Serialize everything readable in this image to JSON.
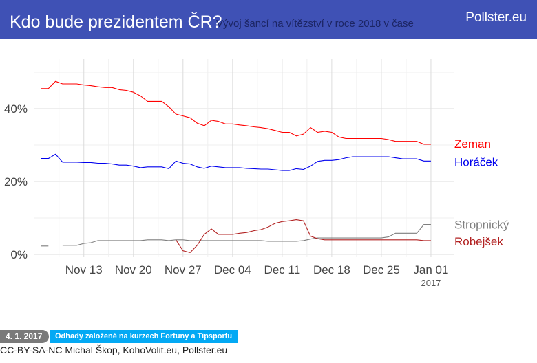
{
  "header": {
    "title": "Kdo bude prezidentem ČR?",
    "subtitle": "Vývoj šancí na vítězství v roce 2018 v čase",
    "brand": "Pollster.eu"
  },
  "footer": {
    "date_badge": "4. 1. 2017",
    "note_badge": "Odhady založené na kurzech Fortuny a Tipsportu",
    "credits": "CC-BY-SA-NC Michal Škop, KohoVolit.eu, Pollster.eu"
  },
  "chart_data": {
    "type": "line",
    "x_tick_labels": [
      "Nov 13",
      "Nov 20",
      "Nov 27",
      "Dec 04",
      "Dec 11",
      "Dec 18",
      "Dec 25",
      "Jan 01"
    ],
    "x_tick_year": "2017",
    "y_tick_labels": [
      "0%",
      "20%",
      "40%"
    ],
    "ylim": [
      0,
      50
    ],
    "grid": true,
    "x_range_days": [
      0,
      56
    ],
    "series": [
      {
        "name": "Zeman",
        "color": "#ff0000",
        "points": [
          [
            0,
            45.5
          ],
          [
            1,
            45.5
          ],
          [
            2,
            47.5
          ],
          [
            3,
            46.8
          ],
          [
            4,
            46.8
          ],
          [
            5,
            46.8
          ],
          [
            6,
            46.5
          ],
          [
            7,
            46.3
          ],
          [
            8,
            46
          ],
          [
            9,
            45.8
          ],
          [
            10,
            45.8
          ],
          [
            11,
            45.2
          ],
          [
            12,
            45
          ],
          [
            13,
            44.5
          ],
          [
            14,
            43.5
          ],
          [
            15,
            42
          ],
          [
            16,
            42
          ],
          [
            17,
            42
          ],
          [
            18,
            40.5
          ],
          [
            19,
            38.5
          ],
          [
            20,
            38
          ],
          [
            21,
            37.5
          ],
          [
            22,
            36
          ],
          [
            23,
            35.3
          ],
          [
            24,
            36.8
          ],
          [
            25,
            36.5
          ],
          [
            26,
            35.8
          ],
          [
            27,
            35.8
          ],
          [
            28,
            35.5
          ],
          [
            29,
            35.3
          ],
          [
            30,
            35
          ],
          [
            31,
            34.8
          ],
          [
            32,
            34.5
          ],
          [
            33,
            34
          ],
          [
            34,
            33.5
          ],
          [
            35,
            33.5
          ],
          [
            36,
            32.5
          ],
          [
            37,
            33
          ],
          [
            38,
            34.8
          ],
          [
            39,
            33.5
          ],
          [
            40,
            33.8
          ],
          [
            41,
            33.5
          ],
          [
            42,
            32.2
          ],
          [
            43,
            31.8
          ],
          [
            44,
            31.8
          ],
          [
            45,
            31.8
          ],
          [
            46,
            31.8
          ],
          [
            47,
            31.8
          ],
          [
            48,
            31.8
          ],
          [
            49,
            31.5
          ],
          [
            50,
            31
          ],
          [
            51,
            31
          ],
          [
            52,
            31
          ],
          [
            53,
            31
          ],
          [
            54,
            30.2
          ],
          [
            55,
            30.2
          ]
        ]
      },
      {
        "name": "Horáček",
        "color": "#0000ee",
        "points": [
          [
            0,
            26.3
          ],
          [
            1,
            26.3
          ],
          [
            2,
            27.5
          ],
          [
            3,
            25.3
          ],
          [
            4,
            25.3
          ],
          [
            5,
            25.3
          ],
          [
            6,
            25.2
          ],
          [
            7,
            25.2
          ],
          [
            8,
            25
          ],
          [
            9,
            25
          ],
          [
            10,
            24.8
          ],
          [
            11,
            24.5
          ],
          [
            12,
            24.5
          ],
          [
            13,
            24.2
          ],
          [
            14,
            23.8
          ],
          [
            15,
            24
          ],
          [
            16,
            24
          ],
          [
            17,
            24
          ],
          [
            18,
            23.5
          ],
          [
            19,
            25.6
          ],
          [
            20,
            25
          ],
          [
            21,
            24.8
          ],
          [
            22,
            24
          ],
          [
            23,
            23.6
          ],
          [
            24,
            24.2
          ],
          [
            25,
            24
          ],
          [
            26,
            23.8
          ],
          [
            27,
            23.8
          ],
          [
            28,
            23.8
          ],
          [
            29,
            23.6
          ],
          [
            30,
            23.5
          ],
          [
            31,
            23.4
          ],
          [
            32,
            23.4
          ],
          [
            33,
            23.2
          ],
          [
            34,
            23
          ],
          [
            35,
            23
          ],
          [
            36,
            23.5
          ],
          [
            37,
            23.3
          ],
          [
            38,
            24.2
          ],
          [
            39,
            25.5
          ],
          [
            40,
            25.8
          ],
          [
            41,
            25.8
          ],
          [
            42,
            26
          ],
          [
            43,
            26.5
          ],
          [
            44,
            26.8
          ],
          [
            45,
            26.8
          ],
          [
            46,
            26.8
          ],
          [
            47,
            26.8
          ],
          [
            48,
            26.8
          ],
          [
            49,
            26.8
          ],
          [
            50,
            26.5
          ],
          [
            51,
            26.2
          ],
          [
            52,
            26.2
          ],
          [
            53,
            26.2
          ],
          [
            54,
            25.6
          ],
          [
            55,
            25.6
          ]
        ]
      },
      {
        "name": "Stropnický",
        "color": "#7f7f7f",
        "points": [
          [
            0,
            2.3
          ],
          [
            1,
            2.3
          ],
          [
            2,
            null
          ],
          [
            3,
            2.5
          ],
          [
            4,
            2.5
          ],
          [
            5,
            2.5
          ],
          [
            6,
            3
          ],
          [
            7,
            3.2
          ],
          [
            8,
            3.8
          ],
          [
            9,
            3.8
          ],
          [
            10,
            3.8
          ],
          [
            11,
            3.8
          ],
          [
            12,
            3.8
          ],
          [
            13,
            3.8
          ],
          [
            14,
            3.8
          ],
          [
            15,
            4
          ],
          [
            16,
            4
          ],
          [
            17,
            4
          ],
          [
            18,
            3.8
          ],
          [
            19,
            4
          ],
          [
            20,
            4
          ],
          [
            21,
            3.8
          ],
          [
            22,
            3.8
          ],
          [
            23,
            3.8
          ],
          [
            24,
            3.8
          ],
          [
            25,
            3.8
          ],
          [
            26,
            3.8
          ],
          [
            27,
            3.8
          ],
          [
            28,
            3.8
          ],
          [
            29,
            3.8
          ],
          [
            30,
            3.8
          ],
          [
            31,
            3.8
          ],
          [
            32,
            3.6
          ],
          [
            33,
            3.6
          ],
          [
            34,
            3.6
          ],
          [
            35,
            3.6
          ],
          [
            36,
            3.6
          ],
          [
            37,
            3.8
          ],
          [
            38,
            4.2
          ],
          [
            39,
            4.5
          ],
          [
            40,
            4.5
          ],
          [
            41,
            4.5
          ],
          [
            42,
            4.5
          ],
          [
            43,
            4.5
          ],
          [
            44,
            4.5
          ],
          [
            45,
            4.5
          ],
          [
            46,
            4.5
          ],
          [
            47,
            4.5
          ],
          [
            48,
            4.5
          ],
          [
            49,
            4.8
          ],
          [
            50,
            5.8
          ],
          [
            51,
            5.8
          ],
          [
            52,
            5.8
          ],
          [
            53,
            5.8
          ],
          [
            54,
            8.2
          ],
          [
            55,
            8.2
          ]
        ]
      },
      {
        "name": "Robejšek",
        "color": "#b22222",
        "points": [
          [
            19,
            4
          ],
          [
            20,
            1
          ],
          [
            21,
            0.5
          ],
          [
            22,
            2.5
          ],
          [
            23,
            5.5
          ],
          [
            24,
            7
          ],
          [
            25,
            5.5
          ],
          [
            26,
            5.5
          ],
          [
            27,
            5.5
          ],
          [
            28,
            5.8
          ],
          [
            29,
            6
          ],
          [
            30,
            6.5
          ],
          [
            31,
            6.8
          ],
          [
            32,
            7.5
          ],
          [
            33,
            8.5
          ],
          [
            34,
            9
          ],
          [
            35,
            9.2
          ],
          [
            36,
            9.5
          ],
          [
            37,
            9.2
          ],
          [
            38,
            5
          ],
          [
            39,
            4.3
          ],
          [
            40,
            4
          ],
          [
            41,
            4
          ],
          [
            42,
            4
          ],
          [
            43,
            4
          ],
          [
            44,
            4
          ],
          [
            45,
            4
          ],
          [
            46,
            4
          ],
          [
            47,
            4
          ],
          [
            48,
            4
          ],
          [
            49,
            4
          ],
          [
            50,
            4
          ],
          [
            51,
            4
          ],
          [
            52,
            4
          ],
          [
            53,
            4
          ],
          [
            54,
            3.8
          ],
          [
            55,
            3.8
          ]
        ]
      }
    ]
  }
}
